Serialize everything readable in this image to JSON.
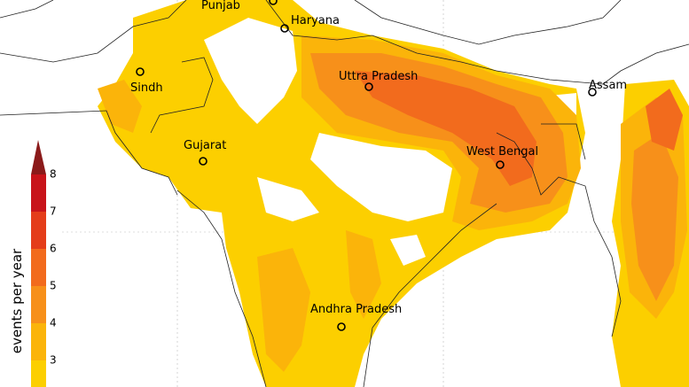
{
  "map": {
    "places": [
      {
        "label": "Punjab"
      },
      {
        "label": "Haryana"
      },
      {
        "label": "Sindh"
      },
      {
        "label": "Uttra Pradesh"
      },
      {
        "label": "Assam"
      },
      {
        "label": "Gujarat"
      },
      {
        "label": "West Bengal"
      },
      {
        "label": "Andhra Pradesh"
      }
    ],
    "legend": {
      "title": "events per year",
      "ticks": [
        3,
        4,
        5,
        6,
        7,
        8
      ]
    }
  }
}
